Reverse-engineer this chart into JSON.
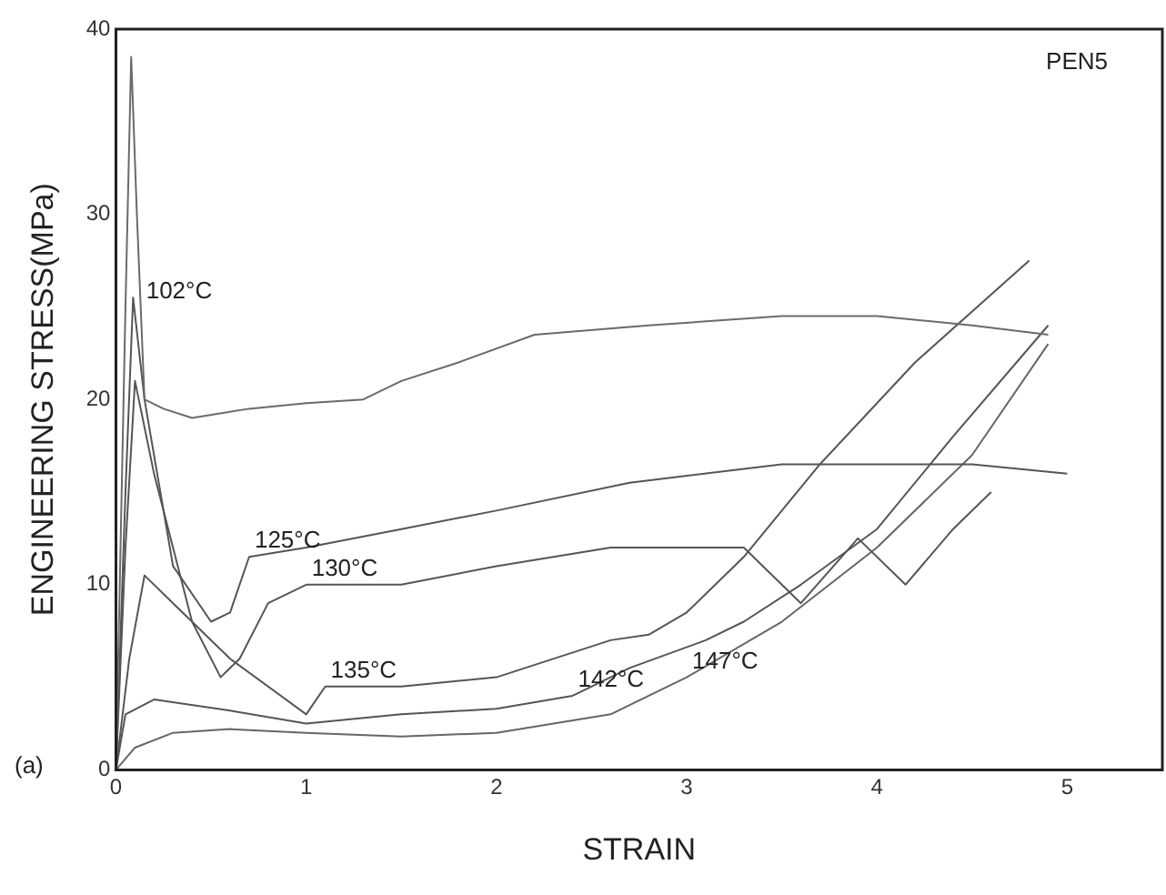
{
  "chart_data": {
    "type": "line",
    "xlabel": "STRAIN",
    "ylabel": "ENGINEERING STRESS(MPa)",
    "xlim": [
      0,
      5.5
    ],
    "ylim": [
      0,
      40
    ],
    "xticks": [
      0,
      1,
      2,
      3,
      4,
      5
    ],
    "yticks": [
      0,
      10,
      20,
      30,
      40
    ],
    "grid": false,
    "legend": false,
    "marker": "none",
    "line_style": "solid",
    "series": [
      {
        "color": "#6a6a6a",
        "x": [
          0,
          0.05,
          0.08,
          0.11,
          0.13,
          0.15,
          0.25,
          0.4,
          0.7,
          1,
          1.3,
          1.5,
          1.8,
          2.2,
          2.8,
          3.5,
          4,
          4.5,
          4.9
        ],
        "values": [
          0,
          25,
          38.5,
          30,
          25,
          20,
          19.5,
          19,
          19.5,
          19.8,
          20,
          21,
          22,
          23.5,
          24,
          24.5,
          24.5,
          24,
          23.5
        ]
      },
      {
        "color": "#555555",
        "x": [
          0,
          0.05,
          0.09,
          0.15,
          0.3,
          0.5,
          0.6,
          0.7,
          1,
          1.5,
          2,
          2.7,
          3.5,
          4,
          4.5,
          5
        ],
        "values": [
          0,
          15,
          25.5,
          20,
          11,
          8,
          8.5,
          11.5,
          12,
          13,
          14,
          15.5,
          16.5,
          16.5,
          16.5,
          16
        ]
      },
      {
        "color": "#555555",
        "x": [
          0,
          0.05,
          0.1,
          0.2,
          0.4,
          0.55,
          0.65,
          0.8,
          1,
          1.5,
          2,
          2.6,
          3.3,
          3.6,
          3.9,
          4.15,
          4.4,
          4.6
        ],
        "values": [
          0,
          12,
          21,
          16,
          8,
          5,
          6,
          9,
          10,
          10,
          11,
          12,
          12,
          9,
          12.5,
          10,
          13,
          15
        ]
      },
      {
        "color": "#555555",
        "x": [
          0,
          0.07,
          0.15,
          0.3,
          0.6,
          1,
          1.1,
          1.5,
          2,
          2.6,
          2.8,
          3,
          3.3,
          3.7,
          4.2,
          4.8
        ],
        "values": [
          0,
          6,
          10.5,
          9,
          6,
          3,
          4.5,
          4.5,
          5,
          7,
          7.3,
          8.5,
          11.5,
          16.5,
          22,
          27.5
        ]
      },
      {
        "color": "#555555",
        "x": [
          0,
          0.05,
          0.2,
          0.6,
          1,
          1.5,
          2,
          2.4,
          2.7,
          3.1,
          3.3,
          3.6,
          4,
          4.4,
          4.9
        ],
        "values": [
          0,
          3,
          3.8,
          3.2,
          2.5,
          3,
          3.3,
          4,
          5.5,
          7,
          8,
          10,
          13,
          18,
          24
        ]
      },
      {
        "color": "#666666",
        "x": [
          0,
          0.1,
          0.3,
          0.6,
          1,
          1.5,
          2,
          2.6,
          3,
          3.5,
          4,
          4.5,
          4.9
        ],
        "values": [
          0,
          1.2,
          2,
          2.2,
          2,
          1.8,
          2,
          3,
          5,
          8,
          12,
          17,
          23
        ]
      }
    ],
    "annotations": [
      "PEN5",
      "(a)",
      {
        "text": "102°C",
        "x": 0.13,
        "y": 25
      },
      {
        "text": "125°C",
        "x": 0.7,
        "y": 11.5
      },
      {
        "text": "130°C",
        "x": 1,
        "y": 10
      },
      {
        "text": "135°C",
        "x": 1.1,
        "y": 4.5
      },
      {
        "text": "142°C",
        "x": 2.4,
        "y": 4
      },
      {
        "text": "147°C",
        "x": 3,
        "y": 5
      }
    ]
  }
}
